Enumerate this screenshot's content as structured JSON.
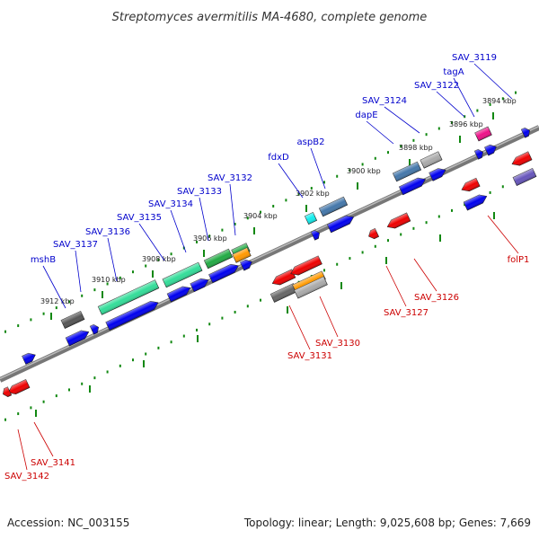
{
  "title": "Streptomyces avermitilis MA-4680, complete genome",
  "footer": {
    "accession": "Accession: NC_003155",
    "topology": "Topology: linear; Length: 9,025,608 bp; Genes: 7,669"
  },
  "colors": {
    "forward_label": "#0000cc",
    "reverse_label": "#cc0000",
    "backbone": "#808080",
    "ruler_dots": "#118811"
  },
  "ticks": [
    {
      "label": "3894 kbp",
      "coord": 3894
    },
    {
      "label": "3896 kbp",
      "coord": 3896
    },
    {
      "label": "3898 kbp",
      "coord": 3898
    },
    {
      "label": "3900 kbp",
      "coord": 3900
    },
    {
      "label": "3902 kbp",
      "coord": 3902
    },
    {
      "label": "3904 kbp",
      "coord": 3904
    },
    {
      "label": "3906 kbp",
      "coord": 3906
    },
    {
      "label": "3908 kbp",
      "coord": 3908
    },
    {
      "label": "3910 kbp",
      "coord": 3910
    },
    {
      "label": "3912 kbp",
      "coord": 3912
    }
  ],
  "forward_labels": [
    "SAV_3119",
    "tagA",
    "SAV_3122",
    "SAV_3124",
    "dapE",
    "aspB2",
    "fdxD",
    "SAV_3132",
    "SAV_3133",
    "SAV_3134",
    "SAV_3135",
    "SAV_3136",
    "SAV_3137",
    "mshB"
  ],
  "reverse_labels": [
    "folP1",
    "SAV_3126",
    "SAV_3127",
    "SAV_3130",
    "SAV_3131",
    "SAV_3141",
    "SAV_3142"
  ]
}
